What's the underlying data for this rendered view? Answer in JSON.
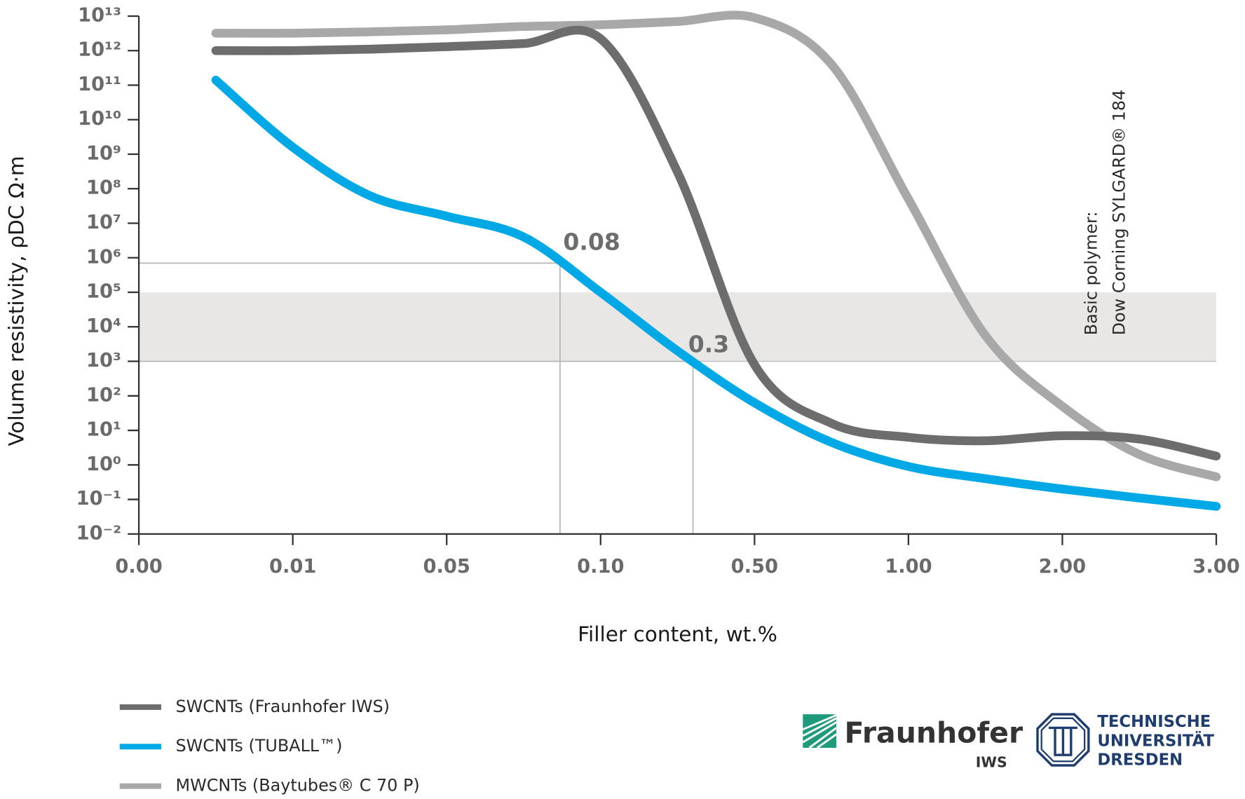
{
  "chart_data": {
    "type": "line",
    "x_label": "Filler content, wt.%",
    "y_label": "Volume resistivity, ρDC Ω·m",
    "categories": [
      "0.00",
      null,
      "0.01",
      null,
      "0.05",
      null,
      "0.10",
      null,
      "0.50",
      null,
      "1.00",
      null,
      "2.00",
      null,
      "3.00"
    ],
    "y_scale": "log",
    "ylim": [
      0.01,
      10000000000000.0
    ],
    "yticks": [
      {
        "value": 10000000000000.0,
        "label": "10¹³"
      },
      {
        "value": 1000000000000.0,
        "label": "10¹²"
      },
      {
        "value": 100000000000.0,
        "label": "10¹¹"
      },
      {
        "value": 10000000000.0,
        "label": "10¹⁰"
      },
      {
        "value": 1000000000.0,
        "label": "10⁹"
      },
      {
        "value": 100000000.0,
        "label": "10⁸"
      },
      {
        "value": 10000000.0,
        "label": "10⁷"
      },
      {
        "value": 1000000.0,
        "label": "10⁶"
      },
      {
        "value": 100000.0,
        "label": "10⁵"
      },
      {
        "value": 10000.0,
        "label": "10⁴"
      },
      {
        "value": 1000.0,
        "label": "10³"
      },
      {
        "value": 100,
        "label": "10²"
      },
      {
        "value": 10,
        "label": "10¹"
      },
      {
        "value": 1,
        "label": "10⁰"
      },
      {
        "value": 0.1,
        "label": "10⁻¹"
      },
      {
        "value": 0.01,
        "label": "10⁻²"
      }
    ],
    "series": [
      {
        "name": "SWCNTs (Fraunhofer IWS)",
        "color": "#6d6d6d",
        "values": [
          null,
          1000000000000.0,
          1000000000000.0,
          1100000000000.0,
          1300000000000.0,
          1600000000000.0,
          2200000000000.0,
          300000000.0,
          800,
          16,
          6.3,
          5,
          7,
          5.6,
          1.8
        ]
      },
      {
        "name": "SWCNTs (TUBALL™)",
        "color": "#00a9e6",
        "values": [
          null,
          140000000000.0,
          1600000000.0,
          63000000.0,
          16000000.0,
          4000000.0,
          100000.0,
          2000,
          63,
          4.5,
          0.9,
          0.4,
          0.2,
          0.11,
          0.063
        ]
      },
      {
        "name": "MWCNTs (Baytubes® C 70 P)",
        "color": "#a8a8a8",
        "values": [
          null,
          3200000000000.0,
          3200000000000.0,
          3500000000000.0,
          4000000000000.0,
          5000000000000.0,
          5600000000000.0,
          7000000000000.0,
          9000000000000.0,
          400000000000.0,
          50000000.0,
          5600,
          50,
          2,
          0.45
        ]
      }
    ],
    "shaded_band": [
      1000,
      100000
    ],
    "reference_lines": [
      {
        "label": "0.08",
        "y": 700000
      },
      {
        "label": "0.3",
        "y": 1000
      }
    ],
    "notes": [
      "Basic polymer:",
      "Dow Corning SYLGARD® 184"
    ],
    "logos": {
      "fraunhofer": "Fraunhofer",
      "fraunhofer_unit": "IWS",
      "tud": [
        "TECHNISCHE",
        "UNIVERSITÄT",
        "DRESDEN"
      ]
    }
  }
}
